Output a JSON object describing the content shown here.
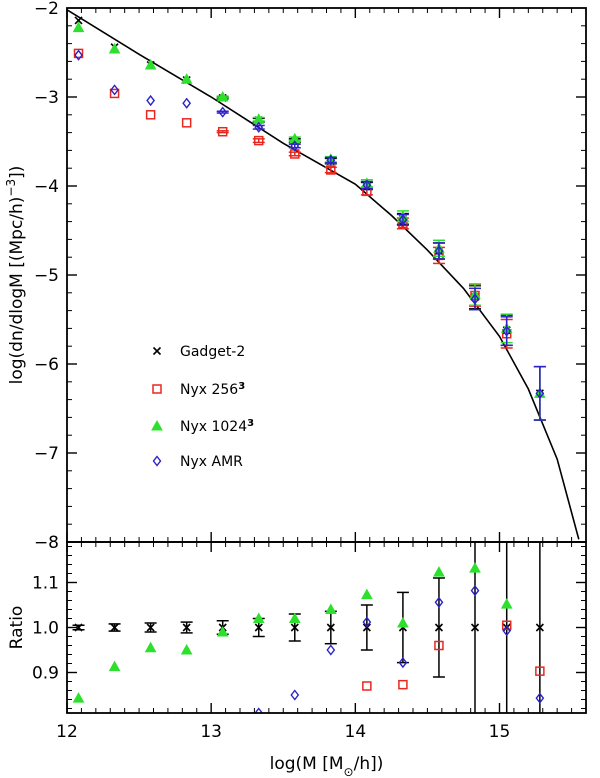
{
  "chart_data": [
    {
      "type": "scatter",
      "panel": "main",
      "xlabel": "log(M [M",
      "xlabel_sub": "⊙",
      "xlabel_end": "/h])",
      "ylabel": "log(dn/dlogM [(Mpc/h)",
      "ylabel_sup": "−3",
      "ylabel_end": "])",
      "xlim": [
        12,
        15.6
      ],
      "ylim": [
        -8,
        -2
      ],
      "x_ticks": [
        12,
        13,
        14,
        15
      ],
      "x_tick_labels": [
        "12",
        "13",
        "14",
        "15"
      ],
      "y_ticks": [
        -8,
        -7,
        -6,
        -5,
        -4,
        -3,
        -2
      ],
      "y_tick_labels": [
        "−8",
        "−7",
        "−6",
        "−5",
        "−4",
        "−3",
        "−2"
      ],
      "theory_curve": {
        "x": [
          12.0,
          12.5,
          13.0,
          13.5,
          14.0,
          14.25,
          14.5,
          14.75,
          15.0,
          15.2,
          15.4,
          15.55
        ],
        "y": [
          -2.02,
          -2.52,
          -3.0,
          -3.52,
          -3.98,
          -4.33,
          -4.72,
          -5.15,
          -5.69,
          -6.28,
          -7.07,
          -7.97
        ]
      },
      "series": [
        {
          "name": "Gadget-2",
          "marker": "x",
          "color": "#000000",
          "x": [
            12.08,
            12.33,
            12.58,
            12.83,
            13.08,
            13.33,
            13.58,
            13.83,
            14.08,
            14.33,
            14.58,
            14.83,
            15.05,
            15.28
          ],
          "y": [
            -2.14,
            -2.44,
            -2.64,
            -2.81,
            -3.01,
            -3.26,
            -3.49,
            -3.72,
            -4.0,
            -4.37,
            -4.73,
            -5.25,
            -5.62,
            -6.33
          ],
          "err": [
            0,
            0,
            0,
            0,
            0.01,
            0.02,
            0.02,
            0.03,
            0.04,
            0.06,
            0.09,
            0.13,
            0.17,
            0.3
          ]
        },
        {
          "name": "Nyx 256",
          "name_sup": "3",
          "marker": "square",
          "color": "#e8271f",
          "x": [
            12.08,
            12.33,
            12.58,
            12.83,
            13.08,
            13.33,
            13.58,
            13.83,
            14.08,
            14.33,
            14.58,
            14.83,
            15.05
          ],
          "y": [
            -2.51,
            -2.96,
            -3.2,
            -3.29,
            -3.39,
            -3.49,
            -3.64,
            -3.82,
            -4.06,
            -4.42,
            -4.78,
            -5.23,
            -5.66
          ],
          "err": [
            0,
            0,
            0,
            0,
            0.01,
            0.02,
            0.02,
            0.03,
            0.04,
            0.06,
            0.09,
            0.12,
            0.16
          ]
        },
        {
          "name": "Nyx 1024",
          "name_sup": "3",
          "marker": "triangle",
          "color": "#2ee02e",
          "x": [
            12.08,
            12.33,
            12.58,
            12.83,
            13.08,
            13.33,
            13.58,
            13.83,
            14.08,
            14.33,
            14.58,
            14.83,
            15.05,
            15.28
          ],
          "y": [
            -2.22,
            -2.46,
            -2.64,
            -2.8,
            -3.0,
            -3.25,
            -3.47,
            -3.7,
            -3.97,
            -4.34,
            -4.7,
            -5.22,
            -5.6,
            -6.33
          ],
          "err": [
            0,
            0,
            0,
            0,
            0.01,
            0.02,
            0.02,
            0.03,
            0.04,
            0.06,
            0.09,
            0.12,
            0.16,
            0.3
          ]
        },
        {
          "name": "Nyx AMR",
          "marker": "diamond",
          "color": "#2b22c8",
          "x": [
            12.08,
            12.33,
            12.58,
            12.83,
            13.08,
            13.33,
            13.58,
            13.83,
            14.08,
            14.33,
            14.58,
            14.83,
            15.05,
            15.28
          ],
          "y": [
            -2.53,
            -2.92,
            -3.04,
            -3.07,
            -3.17,
            -3.34,
            -3.55,
            -3.71,
            -3.99,
            -4.38,
            -4.73,
            -5.27,
            -5.63,
            -6.33
          ],
          "err": [
            0,
            0,
            0,
            0,
            0.01,
            0.02,
            0.02,
            0.03,
            0.04,
            0.06,
            0.09,
            0.12,
            0.16,
            0.3
          ]
        }
      ]
    },
    {
      "type": "scatter",
      "panel": "ratio",
      "ylabel": "Ratio",
      "xlim": [
        12,
        15.6
      ],
      "ylim": [
        0.81,
        1.19
      ],
      "x_ticks": [
        12,
        13,
        14,
        15
      ],
      "y_ticks": [
        0.9,
        1.0,
        1.1
      ],
      "y_tick_labels": [
        "0.9",
        "1.0",
        "1.1"
      ],
      "series": [
        {
          "name": "Gadget-2",
          "marker": "x",
          "color": "#000000",
          "x": [
            12.08,
            12.33,
            12.58,
            12.83,
            13.08,
            13.33,
            13.58,
            13.83,
            14.08,
            14.33,
            14.58,
            14.83,
            15.05,
            15.28
          ],
          "y": [
            1.0,
            1.0,
            1.0,
            1.0,
            1.0,
            1.0,
            1.0,
            1.0,
            1.0,
            1.0,
            1.0,
            1.0,
            1.0,
            1.0
          ],
          "err": [
            0.005,
            0.008,
            0.01,
            0.012,
            0.015,
            0.02,
            0.03,
            0.036,
            0.05,
            0.078,
            0.11,
            0.26,
            0.3,
            0.3
          ]
        },
        {
          "name": "Nyx 256",
          "marker": "square",
          "color": "#e8271f",
          "x": [
            14.08,
            14.33,
            14.58,
            15.05,
            15.28
          ],
          "y": [
            0.87,
            0.873,
            0.96,
            1.005,
            0.903
          ]
        },
        {
          "name": "Nyx 1024",
          "marker": "triangle",
          "color": "#2ee02e",
          "x": [
            12.08,
            12.33,
            12.58,
            12.83,
            13.08,
            13.33,
            13.58,
            13.83,
            14.08,
            14.33,
            14.58,
            14.83,
            15.05
          ],
          "y": [
            0.843,
            0.913,
            0.955,
            0.95,
            0.99,
            1.02,
            1.02,
            1.04,
            1.073,
            1.01,
            1.123,
            1.132,
            1.052
          ]
        },
        {
          "name": "Nyx AMR",
          "marker": "diamond",
          "color": "#2b22c8",
          "x": [
            13.33,
            13.58,
            13.83,
            14.08,
            14.33,
            14.58,
            14.83,
            15.05,
            15.28
          ],
          "y": [
            0.81,
            0.85,
            0.95,
            1.012,
            0.922,
            1.056,
            1.082,
            0.993,
            0.843
          ]
        }
      ]
    }
  ]
}
